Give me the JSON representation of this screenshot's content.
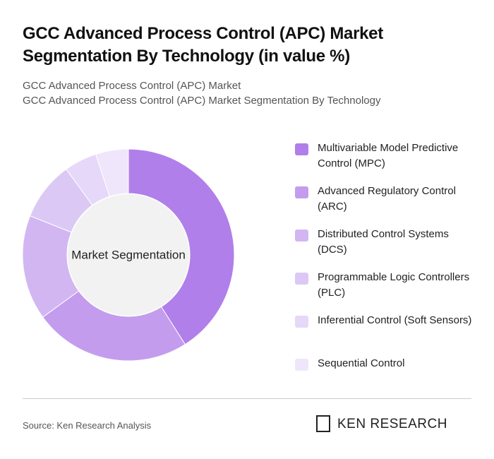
{
  "chart_data": {
    "type": "pie",
    "title": "GCC Advanced Process Control (APC) Market Segmentation By Technology (in value %)",
    "subtitles": [
      "GCC Advanced Process Control (APC) Market",
      "GCC Advanced Process Control (APC) Market Segmentation By Technology"
    ],
    "center_label": "Market Segmentation",
    "categories": [
      "Multivariable Model Predictive Control (MPC)",
      "Advanced Regulatory Control (ARC)",
      "Distributed Control Systems (DCS)",
      "Programmable Logic Controllers (PLC)",
      "Inferential Control (Soft Sensors)",
      "Sequential Control"
    ],
    "values": [
      41,
      24,
      16,
      9,
      5,
      5
    ],
    "colors": [
      "#b07fea",
      "#c49cee",
      "#d2b6f2",
      "#dcc8f5",
      "#e6d8f8",
      "#efe6fb"
    ],
    "source": "Source: Ken Research Analysis",
    "brand": "KEN RESEARCH"
  }
}
